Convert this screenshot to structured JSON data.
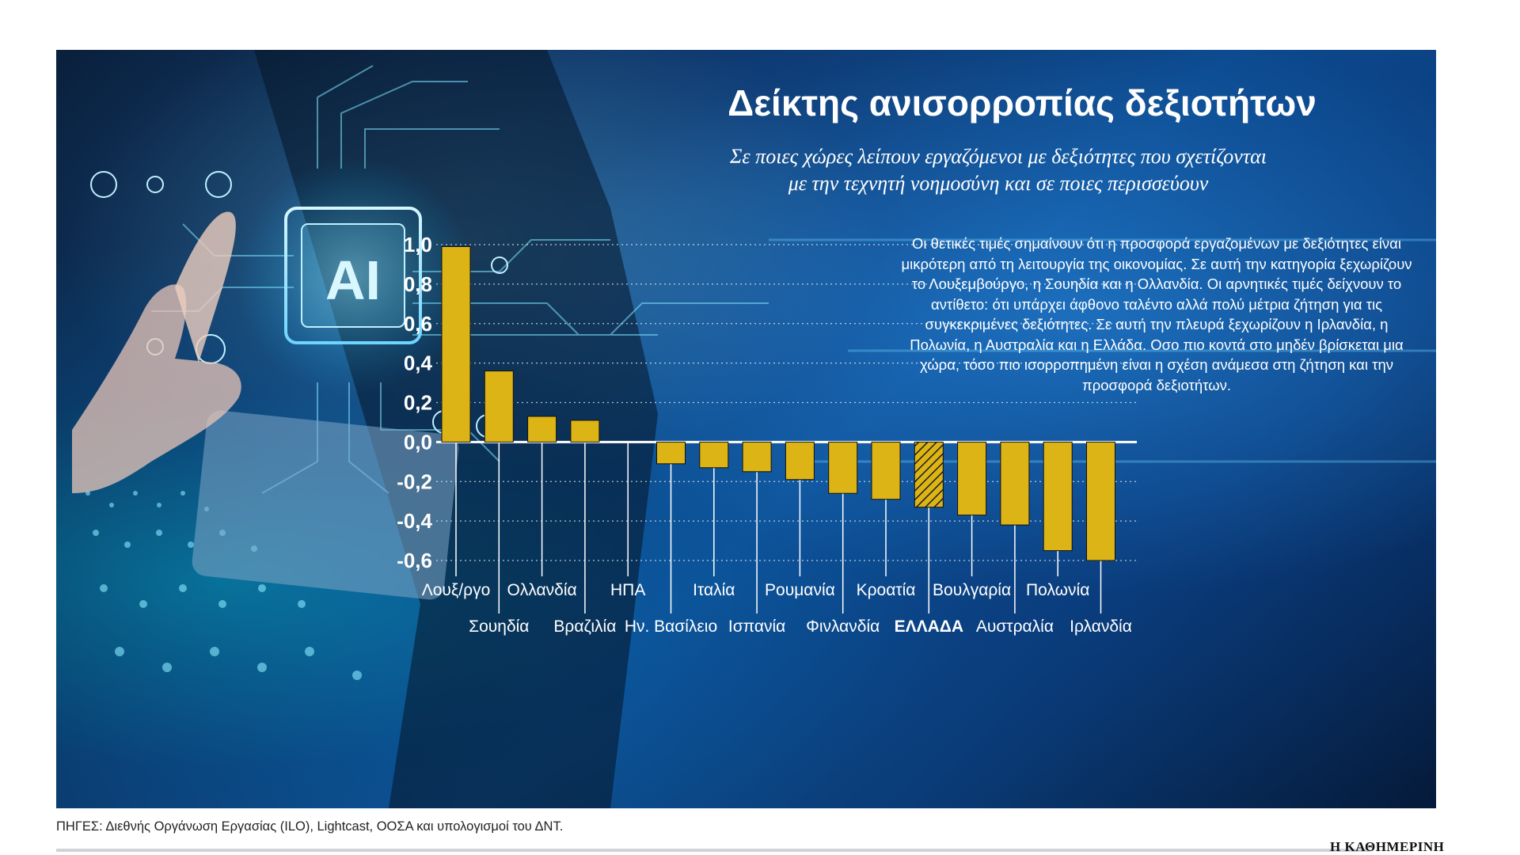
{
  "title": "Δείκτης ανισορροπίας δεξιοτήτων",
  "subtitle_lines": [
    "Σε ποιες χώρες λείπουν εργαζόμενοι με δεξιότητες που σχετίζονται",
    "με την τεχνητή νοημοσύνη και σε ποιες περισσεύουν"
  ],
  "description": "Οι θετικές τιμές σημαίνουν ότι η προσφορά εργαζομένων με δεξιότητες είναι μικρότερη από τη λειτουργία της οικονομίας. Σε αυτή την κατηγορία ξεχωρίζουν το Λουξεμβούργο, η Σουηδία και η Ολλανδία. Οι αρνητικές τιμές δείχνουν το αντίθετο: ότι υπάρχει άφθονο ταλέντο αλλά πολύ μέτρια ζήτηση για τις συγκεκριμένες δεξιότητες. Σε αυτή την πλευρά ξεχωρίζουν η Ιρλανδία, η Πολωνία, η Αυστραλία και η Ελλάδα. Οσο πιο κοντά στο μηδέν βρίσκεται μια χώρα, τόσο πιο ισορροπημένη είναι η σχέση ανάμεσα στη ζήτηση και την προσφορά δεξιοτήτων.",
  "source": "ΠΗΓΕΣ: Διεθνής Οργάνωση Εργασίας (ILO), Lightcast, ΟΟΣΑ και υπολογισμοί του ΔΝΤ.",
  "brand": "Η ΚΑΘΗΜΕΡΙΝΗ",
  "background_badge": "AI",
  "colors": {
    "bar": "#dcb416",
    "bar_border": "#111111",
    "text": "#ffffff",
    "grid": "rgba(255,255,255,0.7)"
  },
  "chart_data": {
    "type": "bar",
    "categories": [
      "Λουξ/ργο",
      "Σουηδία",
      "Ολλανδία",
      "Βραζιλία",
      "ΗΠΑ",
      "Ην. Βασίλειο",
      "Ιταλία",
      "Ισπανία",
      "Ρουμανία",
      "Φινλανδία",
      "Κροατία",
      "ΕΛΛΑΔΑ",
      "Βουλγαρία",
      "Αυστραλία",
      "Πολωνία",
      "Ιρλανδία"
    ],
    "values": [
      0.99,
      0.36,
      0.13,
      0.11,
      0.0,
      -0.11,
      -0.13,
      -0.15,
      -0.19,
      -0.26,
      -0.29,
      -0.33,
      -0.37,
      -0.42,
      -0.55,
      -0.6
    ],
    "highlight": "ΕΛΛΑΔΑ",
    "y_ticks": [
      "1,0",
      "0,8",
      "0,6",
      "0,4",
      "0,2",
      "0,0",
      "-0,2",
      "-0,4",
      "-0,6"
    ],
    "ylim": [
      -0.6,
      1.0
    ],
    "grid": true,
    "title": "",
    "xlabel": "",
    "ylabel": ""
  }
}
